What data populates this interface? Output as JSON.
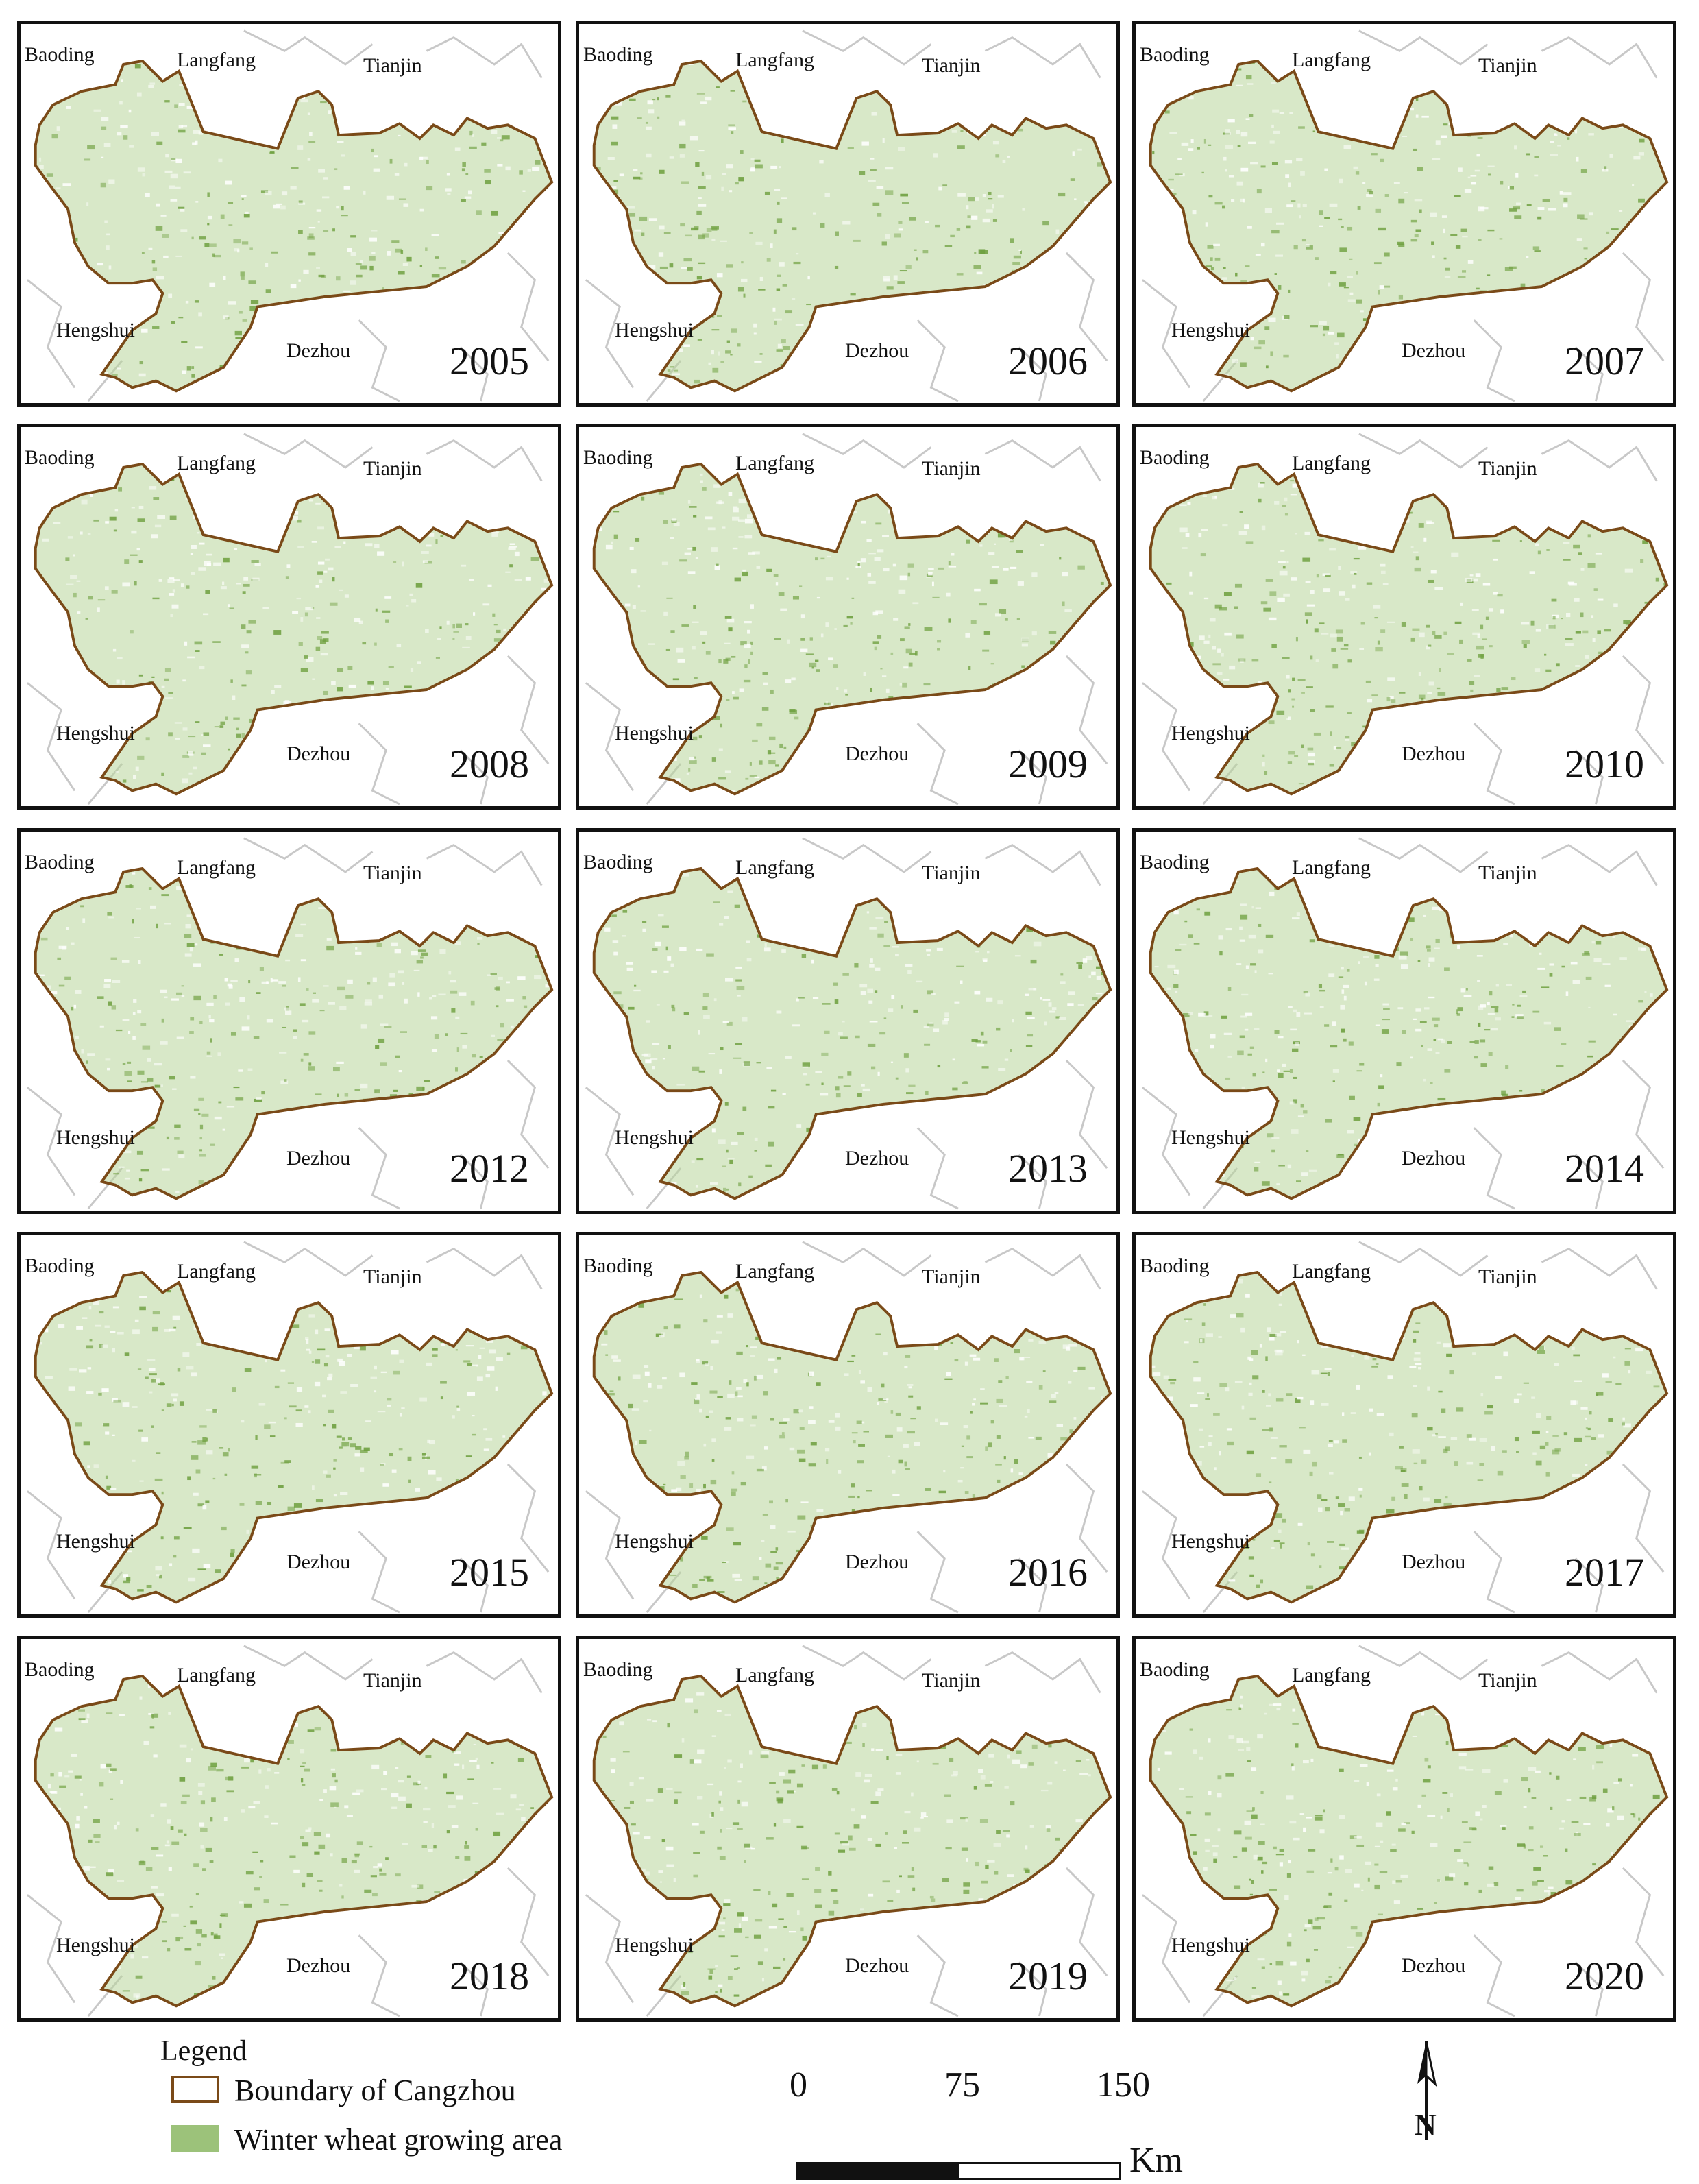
{
  "panels": [
    {
      "year": "2005",
      "labels": {
        "baoding": "Baoding",
        "langfang": "Langfang",
        "tianjin": "Tianjin",
        "hengshui": "Hengshui",
        "dezhou": "Dezhou"
      }
    },
    {
      "year": "2006",
      "labels": {
        "baoding": "Baoding",
        "langfang": "Langfang",
        "tianjin": "Tianjin",
        "hengshui": "Hengshui",
        "dezhou": "Dezhou"
      }
    },
    {
      "year": "2007",
      "labels": {
        "baoding": "Baoding",
        "langfang": "Langfang",
        "tianjin": "Tianjin",
        "hengshui": "Hengshui",
        "dezhou": "Dezhou"
      }
    },
    {
      "year": "2008",
      "labels": {
        "baoding": "Baoding",
        "langfang": "Langfang",
        "tianjin": "Tianjin",
        "hengshui": "Hengshui",
        "dezhou": "Dezhou"
      }
    },
    {
      "year": "2009",
      "labels": {
        "baoding": "Baoding",
        "langfang": "Langfang",
        "tianjin": "Tianjin",
        "hengshui": "Hengshui",
        "dezhou": "Dezhou"
      }
    },
    {
      "year": "2010",
      "labels": {
        "baoding": "Baoding",
        "langfang": "Langfang",
        "tianjin": "Tianjin",
        "hengshui": "Hengshui",
        "dezhou": "Dezhou"
      }
    },
    {
      "year": "2012",
      "labels": {
        "baoding": "Baoding",
        "langfang": "Langfang",
        "tianjin": "Tianjin",
        "hengshui": "Hengshui",
        "dezhou": "Dezhou"
      }
    },
    {
      "year": "2013",
      "labels": {
        "baoding": "Baoding",
        "langfang": "Langfang",
        "tianjin": "Tianjin",
        "hengshui": "Hengshui",
        "dezhou": "Dezhou"
      }
    },
    {
      "year": "2014",
      "labels": {
        "baoding": "Baoding",
        "langfang": "Langfang",
        "tianjin": "Tianjin",
        "hengshui": "Hengshui",
        "dezhou": "Dezhou"
      }
    },
    {
      "year": "2015",
      "labels": {
        "baoding": "Baoding",
        "langfang": "Langfang",
        "tianjin": "Tianjin",
        "hengshui": "Hengshui",
        "dezhou": "Dezhou"
      }
    },
    {
      "year": "2016",
      "labels": {
        "baoding": "Baoding",
        "langfang": "Langfang",
        "tianjin": "Tianjin",
        "hengshui": "Hengshui",
        "dezhou": "Dezhou"
      }
    },
    {
      "year": "2017",
      "labels": {
        "baoding": "Baoding",
        "langfang": "Langfang",
        "tianjin": "Tianjin",
        "hengshui": "Hengshui",
        "dezhou": "Dezhou"
      }
    },
    {
      "year": "2018",
      "labels": {
        "baoding": "Baoding",
        "langfang": "Langfang",
        "tianjin": "Tianjin",
        "hengshui": "Hengshui",
        "dezhou": "Dezhou"
      }
    },
    {
      "year": "2019",
      "labels": {
        "baoding": "Baoding",
        "langfang": "Langfang",
        "tianjin": "Tianjin",
        "hengshui": "Hengshui",
        "dezhou": "Dezhou"
      }
    },
    {
      "year": "2020",
      "labels": {
        "baoding": "Baoding",
        "langfang": "Langfang",
        "tianjin": "Tianjin",
        "hengshui": "Hengshui",
        "dezhou": "Dezhou"
      }
    }
  ],
  "legend": {
    "title": "Legend",
    "items": [
      {
        "label": "Boundary of Cangzhou",
        "kind": "boundary",
        "color": "#7a4a18"
      },
      {
        "label": "Winter wheat growing area",
        "kind": "fill",
        "color": "#9cc27a"
      }
    ]
  },
  "scale": {
    "ticks": [
      "0",
      "75",
      "150"
    ],
    "unit": "Km"
  },
  "north_arrow": {
    "label": "N"
  },
  "colors": {
    "boundary": "#7a4a18",
    "wheat": "#6fa040",
    "wheat_light": "#b8d69a",
    "context_lines": "#c8c8c8",
    "frame": "#111111"
  }
}
